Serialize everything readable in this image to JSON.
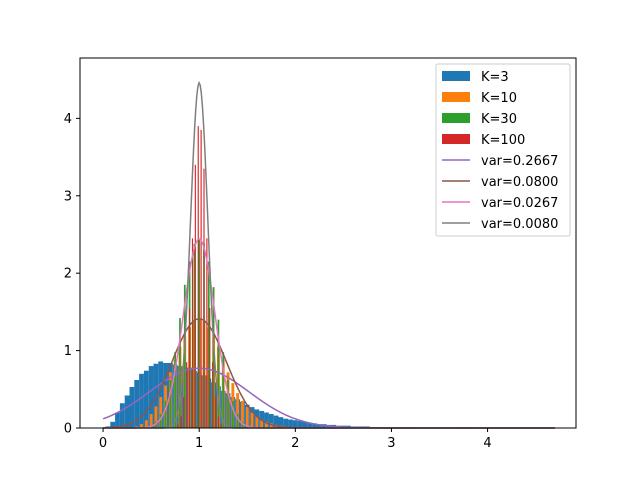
{
  "chart_data": {
    "type": "bar",
    "title": "",
    "xlabel": "",
    "ylabel": "",
    "xlim": [
      -0.24,
      4.92
    ],
    "ylim": [
      0,
      4.78
    ],
    "xticks": [
      "0",
      "1",
      "2",
      "3",
      "4"
    ],
    "xtick_values": [
      0,
      1,
      2,
      3,
      4
    ],
    "yticks": [
      "0",
      "1",
      "2",
      "3",
      "4"
    ],
    "ytick_values": [
      0,
      1,
      2,
      3,
      4
    ],
    "legend_position": "top-right",
    "histograms": [
      {
        "name": "K=3",
        "color": "#1f77b4",
        "bin_width": 0.05,
        "bins": [
          [
            0.05,
            0.02
          ],
          [
            0.1,
            0.08
          ],
          [
            0.15,
            0.2
          ],
          [
            0.2,
            0.32
          ],
          [
            0.25,
            0.42
          ],
          [
            0.3,
            0.53
          ],
          [
            0.35,
            0.62
          ],
          [
            0.4,
            0.7
          ],
          [
            0.45,
            0.74
          ],
          [
            0.5,
            0.8
          ],
          [
            0.55,
            0.83
          ],
          [
            0.6,
            0.86
          ],
          [
            0.65,
            0.84
          ],
          [
            0.7,
            0.84
          ],
          [
            0.75,
            0.82
          ],
          [
            0.8,
            0.8
          ],
          [
            0.85,
            0.78
          ],
          [
            0.9,
            0.78
          ],
          [
            0.95,
            0.74
          ],
          [
            1.0,
            0.72
          ],
          [
            1.05,
            0.68
          ],
          [
            1.1,
            0.64
          ],
          [
            1.15,
            0.59
          ],
          [
            1.2,
            0.54
          ],
          [
            1.25,
            0.48
          ],
          [
            1.3,
            0.45
          ],
          [
            1.35,
            0.4
          ],
          [
            1.4,
            0.37
          ],
          [
            1.45,
            0.34
          ],
          [
            1.5,
            0.3
          ],
          [
            1.55,
            0.27
          ],
          [
            1.6,
            0.24
          ],
          [
            1.65,
            0.22
          ],
          [
            1.7,
            0.2
          ],
          [
            1.75,
            0.18
          ],
          [
            1.8,
            0.16
          ],
          [
            1.85,
            0.14
          ],
          [
            1.9,
            0.12
          ],
          [
            1.95,
            0.11
          ],
          [
            2.0,
            0.1
          ],
          [
            2.05,
            0.09
          ],
          [
            2.1,
            0.08
          ],
          [
            2.15,
            0.07
          ],
          [
            2.2,
            0.06
          ],
          [
            2.25,
            0.05
          ],
          [
            2.3,
            0.05
          ],
          [
            2.35,
            0.04
          ],
          [
            2.4,
            0.04
          ],
          [
            2.45,
            0.03
          ],
          [
            2.5,
            0.03
          ],
          [
            2.55,
            0.03
          ],
          [
            2.6,
            0.02
          ],
          [
            2.65,
            0.02
          ],
          [
            2.7,
            0.02
          ],
          [
            2.75,
            0.02
          ],
          [
            2.8,
            0.01
          ],
          [
            2.85,
            0.01
          ],
          [
            2.9,
            0.01
          ],
          [
            3.0,
            0.01
          ],
          [
            3.1,
            0.01
          ],
          [
            3.2,
            0.01
          ],
          [
            3.75,
            0.01
          ]
        ]
      },
      {
        "name": "K=10",
        "color": "#ff7f0e",
        "bin_width": 0.03,
        "bins": [
          [
            0.35,
            0.02
          ],
          [
            0.4,
            0.05
          ],
          [
            0.45,
            0.1
          ],
          [
            0.5,
            0.18
          ],
          [
            0.55,
            0.28
          ],
          [
            0.6,
            0.4
          ],
          [
            0.65,
            0.55
          ],
          [
            0.7,
            0.72
          ],
          [
            0.75,
            0.88
          ],
          [
            0.8,
            1.05
          ],
          [
            0.85,
            1.18
          ],
          [
            0.9,
            1.3
          ],
          [
            0.95,
            1.38
          ],
          [
            1.0,
            1.4
          ],
          [
            1.05,
            1.38
          ],
          [
            1.1,
            1.3
          ],
          [
            1.15,
            1.18
          ],
          [
            1.2,
            1.05
          ],
          [
            1.25,
            0.88
          ],
          [
            1.3,
            0.72
          ],
          [
            1.35,
            0.58
          ],
          [
            1.4,
            0.45
          ],
          [
            1.45,
            0.35
          ],
          [
            1.5,
            0.27
          ],
          [
            1.55,
            0.2
          ],
          [
            1.6,
            0.15
          ],
          [
            1.65,
            0.11
          ],
          [
            1.7,
            0.08
          ],
          [
            1.75,
            0.06
          ],
          [
            1.8,
            0.04
          ],
          [
            1.85,
            0.03
          ],
          [
            1.9,
            0.02
          ],
          [
            2.0,
            0.01
          ]
        ]
      },
      {
        "name": "K=30",
        "color": "#2ca02c",
        "bin_width": 0.018,
        "bins": [
          [
            0.5,
            0.03
          ],
          [
            0.55,
            0.08
          ],
          [
            0.6,
            0.18
          ],
          [
            0.65,
            0.35
          ],
          [
            0.7,
            0.62
          ],
          [
            0.75,
            0.98
          ],
          [
            0.8,
            1.42
          ],
          [
            0.85,
            1.85
          ],
          [
            0.9,
            2.15
          ],
          [
            0.95,
            2.38
          ],
          [
            1.0,
            2.45
          ],
          [
            1.05,
            2.38
          ],
          [
            1.1,
            2.15
          ],
          [
            1.15,
            1.82
          ],
          [
            1.2,
            1.4
          ],
          [
            1.25,
            0.98
          ],
          [
            1.3,
            0.62
          ],
          [
            1.35,
            0.35
          ],
          [
            1.4,
            0.18
          ],
          [
            1.45,
            0.08
          ],
          [
            1.5,
            0.03
          ]
        ]
      },
      {
        "name": "K=100",
        "color": "#d62728",
        "bin_width": 0.012,
        "bins": [
          [
            0.78,
            0.05
          ],
          [
            0.81,
            0.15
          ],
          [
            0.84,
            0.4
          ],
          [
            0.87,
            0.85
          ],
          [
            0.9,
            1.55
          ],
          [
            0.93,
            2.45
          ],
          [
            0.96,
            3.4
          ],
          [
            0.99,
            3.9
          ],
          [
            1.02,
            3.85
          ],
          [
            1.05,
            3.35
          ],
          [
            1.08,
            2.45
          ],
          [
            1.11,
            1.55
          ],
          [
            1.14,
            0.85
          ],
          [
            1.17,
            0.4
          ],
          [
            1.2,
            0.15
          ],
          [
            1.23,
            0.05
          ]
        ]
      }
    ],
    "series": [
      {
        "name": "var=0.2667",
        "color": "#9467bd",
        "mean": 1.0,
        "variance": 0.2667,
        "x_range": [
          0,
          4.7
        ]
      },
      {
        "name": "var=0.0800",
        "color": "#8c564b",
        "mean": 1.0,
        "variance": 0.08,
        "x_range": [
          0,
          4.7
        ]
      },
      {
        "name": "var=0.0267",
        "color": "#e377c2",
        "mean": 1.0,
        "variance": 0.0267,
        "x_range": [
          0,
          4.7
        ]
      },
      {
        "name": "var=0.0080",
        "color": "#7f7f7f",
        "mean": 1.0,
        "variance": 0.008,
        "x_range": [
          0,
          4.7
        ]
      }
    ]
  }
}
